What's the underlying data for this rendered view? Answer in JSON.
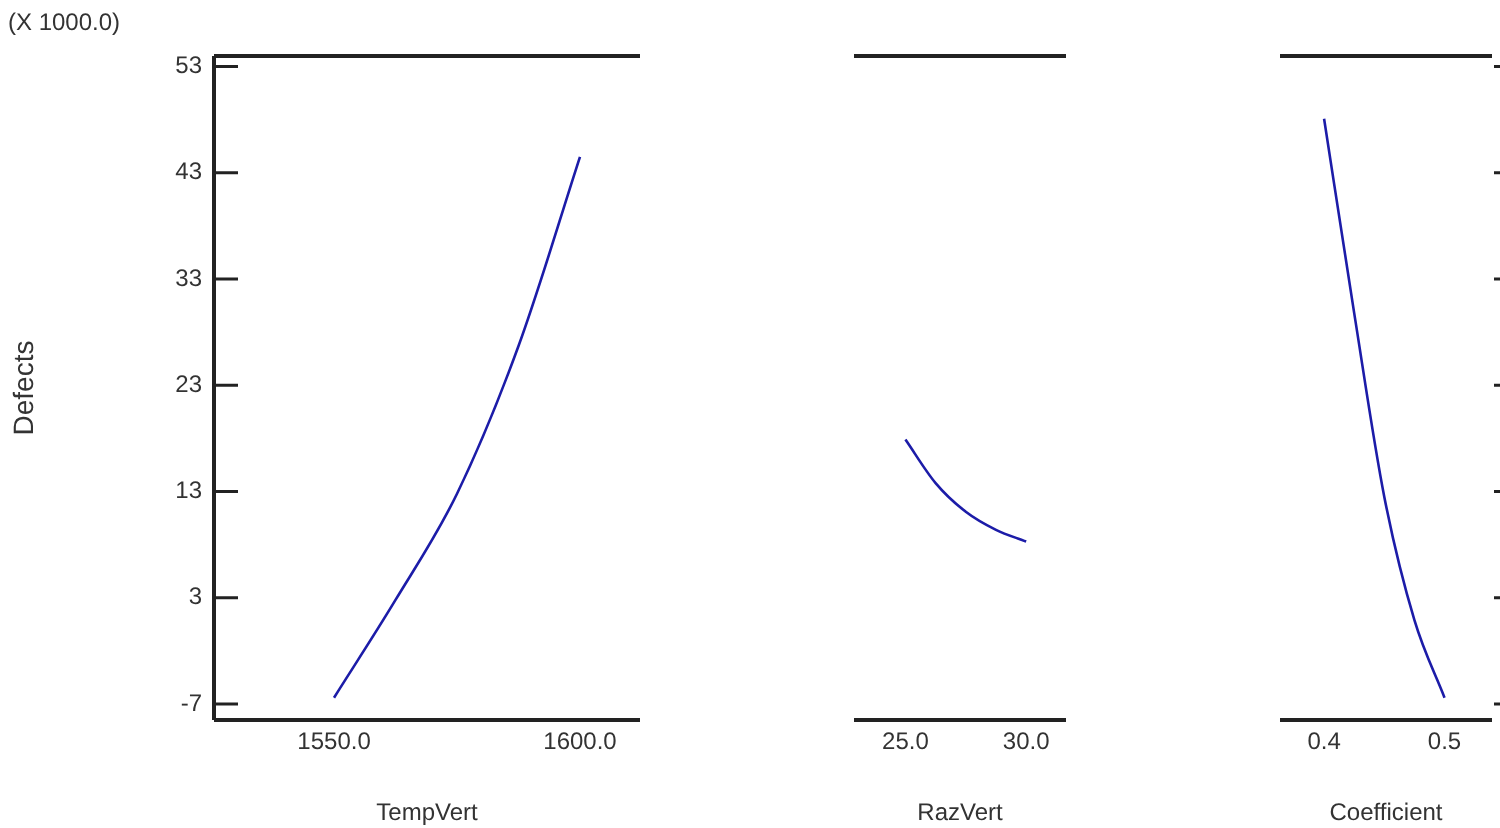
{
  "chart_data": [
    {
      "type": "line",
      "ylabel": "Defects",
      "xlabel": "TempVert",
      "annotations": [
        "(X 1000.0)"
      ],
      "marker": "none",
      "xlim": [
        1525.6,
        1612.2
      ],
      "xticks": [
        {
          "value": 1550,
          "label": "1550.0"
        },
        {
          "value": 1600,
          "label": "1600.0"
        }
      ],
      "ylim": [
        -8.5,
        54
      ],
      "yticks": [
        -7,
        3,
        13,
        23,
        33,
        43,
        53
      ],
      "series": [
        {
          "color": "#1c1ca8",
          "x": [
            1550,
            1562.5,
            1575,
            1587.5,
            1600
          ],
          "values": [
            -6.4,
            2.8,
            12.8,
            26.7,
            44.5
          ]
        }
      ]
    },
    {
      "type": "line",
      "xlabel": "RazVert",
      "marker": "none",
      "tick_labels": "x",
      "xlim": [
        22.87,
        31.65
      ],
      "xticks": [
        {
          "value": 25,
          "label": "25.0"
        },
        {
          "value": 30,
          "label": "30.0"
        }
      ],
      "ylim": [
        -8.5,
        54
      ],
      "series": [
        {
          "color": "#1c1ca8",
          "x": [
            25,
            26.25,
            27.5,
            28.75,
            30
          ],
          "values": [
            17.9,
            13.8,
            11.1,
            9.4,
            8.3
          ]
        }
      ]
    },
    {
      "type": "line",
      "xlabel": "Coefficient",
      "marker": "none",
      "tick_labels": "x",
      "xlim": [
        0.3634,
        0.5394
      ],
      "xticks": [
        0.4,
        0.5
      ],
      "ylim": [
        -8.5,
        54
      ],
      "yticks": [
        {
          "value": -7,
          "label": null
        },
        {
          "value": 3,
          "label": null
        },
        {
          "value": 13,
          "label": null
        },
        {
          "value": 23,
          "label": null
        },
        {
          "value": 33,
          "label": null
        },
        {
          "value": 43,
          "label": null
        },
        {
          "value": 53,
          "label": null
        }
      ],
      "series": [
        {
          "color": "#1c1ca8",
          "x": [
            0.4,
            0.425,
            0.45,
            0.475,
            0.5
          ],
          "values": [
            48.1,
            29.8,
            12.5,
            0.9,
            -6.4
          ]
        }
      ]
    }
  ]
}
